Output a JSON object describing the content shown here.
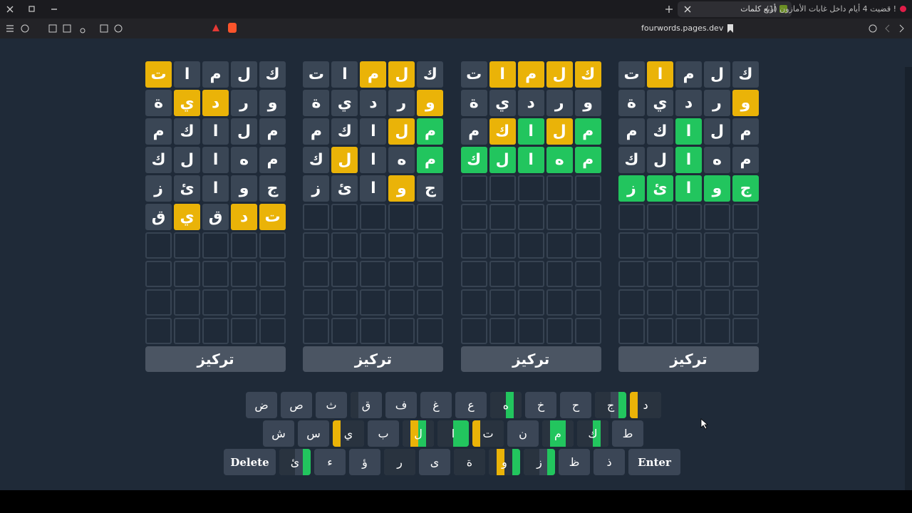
{
  "browser": {
    "tabs": [
      "أربع كلمات",
      "(1) قضيت 4 أيام داخل غابات الأمازون !"
    ],
    "url": "fourwords.pages.dev"
  },
  "game": {
    "rows": 10,
    "button": "تركيز",
    "colors": {
      "correct": "#22c55e",
      "present": "#eab308",
      "absent": "#3a4655"
    },
    "boards": [
      {
        "guesses": [
          {
            "letters": [
              "ك",
              "ل",
              "م",
              "ا",
              "ت"
            ],
            "states": [
              "absent",
              "absent",
              "absent",
              "present",
              "absent"
            ]
          },
          {
            "letters": [
              "و",
              "ر",
              "د",
              "ي",
              "ة"
            ],
            "states": [
              "present",
              "absent",
              "absent",
              "absent",
              "absent"
            ]
          },
          {
            "letters": [
              "م",
              "ل",
              "ا",
              "ك",
              "م"
            ],
            "states": [
              "absent",
              "absent",
              "correct",
              "absent",
              "absent"
            ]
          },
          {
            "letters": [
              "م",
              "ه",
              "ا",
              "ل",
              "ك"
            ],
            "states": [
              "absent",
              "absent",
              "correct",
              "absent",
              "absent"
            ]
          },
          {
            "letters": [
              "ج",
              "و",
              "ا",
              "ئ",
              "ز"
            ],
            "states": [
              "correct",
              "correct",
              "correct",
              "correct",
              "correct"
            ]
          }
        ]
      },
      {
        "guesses": [
          {
            "letters": [
              "ك",
              "ل",
              "م",
              "ا",
              "ت"
            ],
            "states": [
              "present",
              "present",
              "present",
              "present",
              "absent"
            ]
          },
          {
            "letters": [
              "و",
              "ر",
              "د",
              "ي",
              "ة"
            ],
            "states": [
              "absent",
              "absent",
              "absent",
              "absent",
              "absent"
            ]
          },
          {
            "letters": [
              "م",
              "ل",
              "ا",
              "ك",
              "م"
            ],
            "states": [
              "correct",
              "present",
              "correct",
              "present",
              "absent"
            ]
          },
          {
            "letters": [
              "م",
              "ه",
              "ا",
              "ل",
              "ك"
            ],
            "states": [
              "correct",
              "correct",
              "correct",
              "correct",
              "correct"
            ]
          }
        ]
      },
      {
        "guesses": [
          {
            "letters": [
              "ك",
              "ل",
              "م",
              "ا",
              "ت"
            ],
            "states": [
              "absent",
              "present",
              "present",
              "absent",
              "absent"
            ]
          },
          {
            "letters": [
              "و",
              "ر",
              "د",
              "ي",
              "ة"
            ],
            "states": [
              "present",
              "absent",
              "absent",
              "absent",
              "absent"
            ]
          },
          {
            "letters": [
              "م",
              "ل",
              "ا",
              "ك",
              "م"
            ],
            "states": [
              "correct",
              "present",
              "absent",
              "absent",
              "absent"
            ]
          },
          {
            "letters": [
              "م",
              "ه",
              "ا",
              "ل",
              "ك"
            ],
            "states": [
              "correct",
              "absent",
              "absent",
              "present",
              "absent"
            ]
          },
          {
            "letters": [
              "ج",
              "و",
              "ا",
              "ئ",
              "ز"
            ],
            "states": [
              "absent",
              "present",
              "absent",
              "absent",
              "absent"
            ]
          }
        ]
      },
      {
        "guesses": [
          {
            "letters": [
              "ك",
              "ل",
              "م",
              "ا",
              "ت"
            ],
            "states": [
              "absent",
              "absent",
              "absent",
              "absent",
              "present"
            ]
          },
          {
            "letters": [
              "و",
              "ر",
              "د",
              "ي",
              "ة"
            ],
            "states": [
              "absent",
              "absent",
              "present",
              "present",
              "absent"
            ]
          },
          {
            "letters": [
              "م",
              "ل",
              "ا",
              "ك",
              "م"
            ],
            "states": [
              "absent",
              "absent",
              "absent",
              "absent",
              "absent"
            ]
          },
          {
            "letters": [
              "م",
              "ه",
              "ا",
              "ل",
              "ك"
            ],
            "states": [
              "absent",
              "absent",
              "absent",
              "absent",
              "absent"
            ]
          },
          {
            "letters": [
              "ج",
              "و",
              "ا",
              "ئ",
              "ز"
            ],
            "states": [
              "absent",
              "absent",
              "absent",
              "absent",
              "absent"
            ]
          },
          {
            "letters": [
              "ت",
              "د",
              "ق",
              "ي",
              "ق"
            ],
            "states": [
              "present",
              "present",
              "absent",
              "present",
              "absent"
            ]
          }
        ]
      }
    ],
    "keyboard": [
      [
        "د",
        "ج",
        "ح",
        "خ",
        "ه",
        "ع",
        "غ",
        "ف",
        "ق",
        "ث",
        "ص",
        "ض"
      ],
      [
        "ط",
        "ك",
        "م",
        "ن",
        "ت",
        "ا",
        "ل",
        "ب",
        "ي",
        "س",
        "ش"
      ],
      [
        "Enter",
        "ذ",
        "ظ",
        "ز",
        "و",
        "ة",
        "ى",
        "ر",
        "ؤ",
        "ء",
        "ئ",
        "Delete"
      ]
    ]
  }
}
